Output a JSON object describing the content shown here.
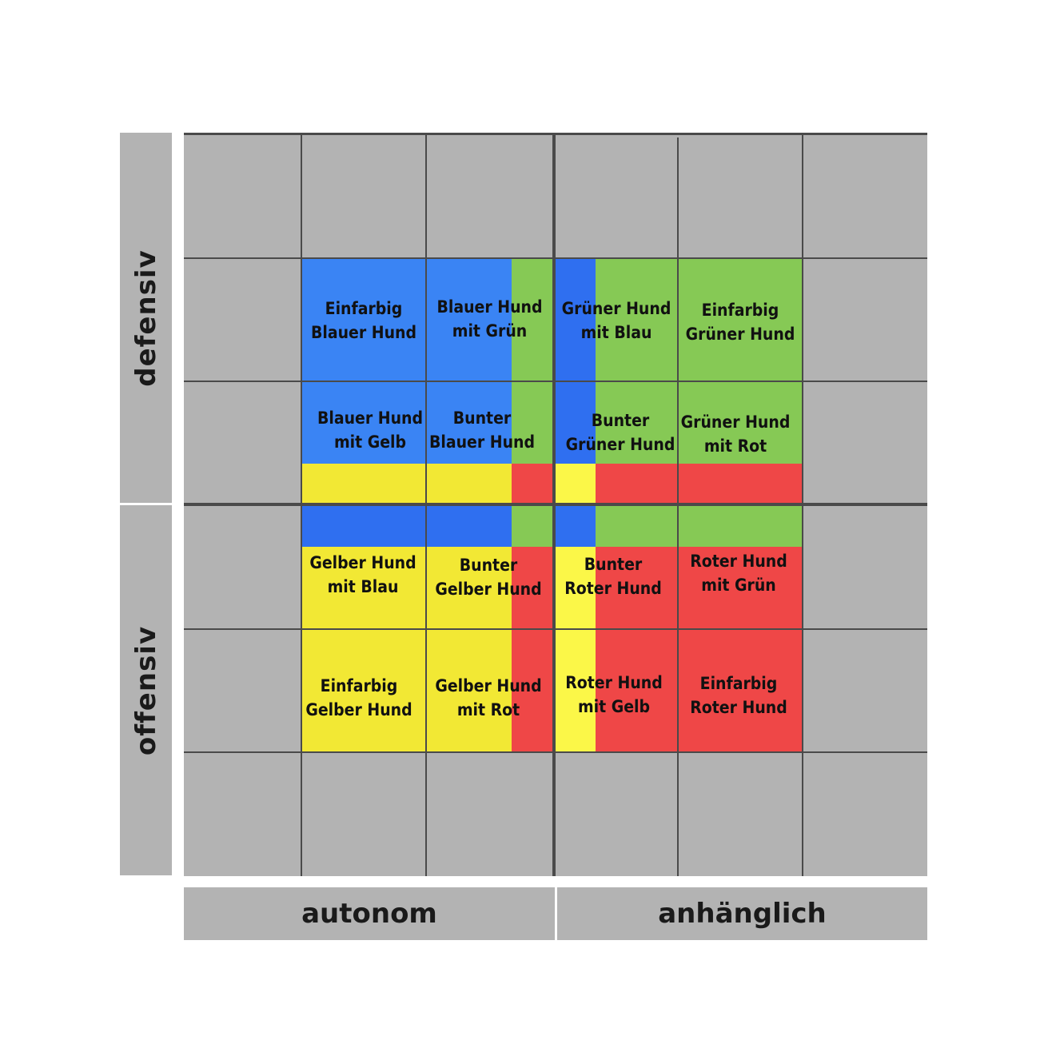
{
  "axes": {
    "y_top": "defensiv",
    "y_bottom": "offensiv",
    "x_left": "autonom",
    "x_right": "anhänglich"
  },
  "colors": {
    "grid_background": "#b3b3b3",
    "grid_lines": "#4a4a4a",
    "blue": "#3a84f4",
    "blue_dark": "#2f6ff0",
    "green": "#86c955",
    "yellow": "#f2e834",
    "yellow_light": "#fbf748",
    "red": "#ef4747"
  },
  "cells": [
    {
      "name": "einfarbig-blauer-hund",
      "lines": [
        "Einfarbig",
        "Blauer Hund"
      ],
      "color": "blue"
    },
    {
      "name": "blauer-hund-mit-gruen",
      "lines": [
        "Blauer Hund",
        "mit Grün"
      ],
      "color": "blue",
      "accent": "green"
    },
    {
      "name": "gruener-hund-mit-blau",
      "lines": [
        "Grüner Hund",
        "mit Blau"
      ],
      "color": "green",
      "accent": "blue"
    },
    {
      "name": "einfarbig-gruener-hund",
      "lines": [
        "Einfarbig",
        "Grüner Hund"
      ],
      "color": "green"
    },
    {
      "name": "blauer-hund-mit-gelb",
      "lines": [
        "Blauer Hund",
        "mit Gelb"
      ],
      "color": "blue",
      "accent": "yellow"
    },
    {
      "name": "bunter-blauer-hund",
      "lines": [
        "Bunter",
        "Blauer Hund"
      ],
      "color": "blue"
    },
    {
      "name": "bunter-gruener-hund",
      "lines": [
        "Bunter",
        "Grüner Hund"
      ],
      "color": "green"
    },
    {
      "name": "gruener-hund-mit-rot",
      "lines": [
        "Grüner Hund",
        "mit Rot"
      ],
      "color": "green",
      "accent": "red"
    },
    {
      "name": "gelber-hund-mit-blau",
      "lines": [
        "Gelber Hund",
        "mit Blau"
      ],
      "color": "yellow",
      "accent": "blue"
    },
    {
      "name": "bunter-gelber-hund",
      "lines": [
        "Bunter",
        "Gelber Hund"
      ],
      "color": "yellow"
    },
    {
      "name": "bunter-roter-hund",
      "lines": [
        "Bunter",
        "Roter Hund"
      ],
      "color": "red"
    },
    {
      "name": "roter-hund-mit-gruen",
      "lines": [
        "Roter Hund",
        "mit Grün"
      ],
      "color": "red",
      "accent": "green"
    },
    {
      "name": "einfarbig-gelber-hund",
      "lines": [
        "Einfarbig",
        "Gelber Hund"
      ],
      "color": "yellow"
    },
    {
      "name": "gelber-hund-mit-rot",
      "lines": [
        "Gelber Hund",
        "mit Rot"
      ],
      "color": "yellow",
      "accent": "red"
    },
    {
      "name": "roter-hund-mit-gelb",
      "lines": [
        "Roter Hund",
        "mit Gelb"
      ],
      "color": "red",
      "accent": "yellow"
    },
    {
      "name": "einfarbig-roter-hund",
      "lines": [
        "Einfarbig",
        "Roter Hund"
      ],
      "color": "red"
    }
  ]
}
